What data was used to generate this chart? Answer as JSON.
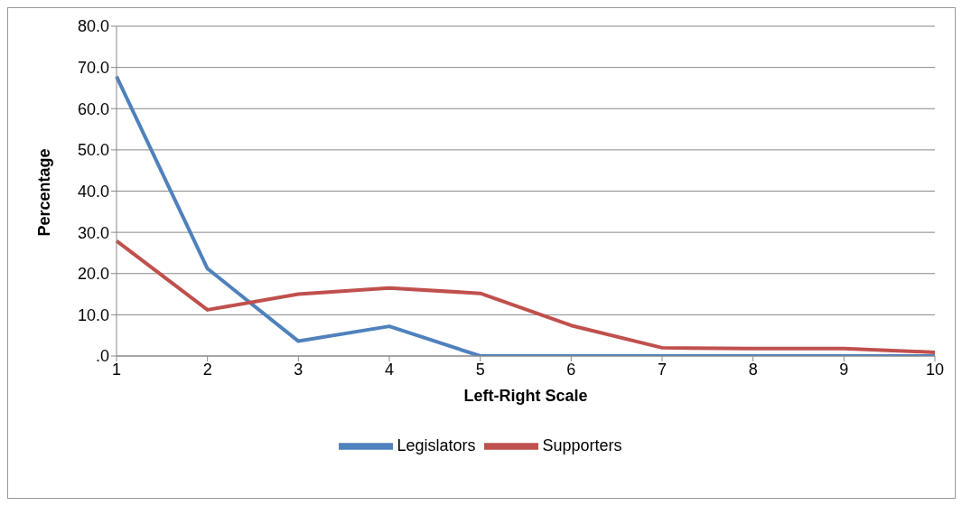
{
  "chart_data": {
    "type": "line",
    "xlabel": "Left-Right Scale",
    "ylabel": "Percentage",
    "categories": [
      "1",
      "2",
      "3",
      "4",
      "5",
      "6",
      "7",
      "8",
      "9",
      "10"
    ],
    "series": [
      {
        "name": "Legislators",
        "color": "#4f81bd",
        "values": [
          67.8,
          21.2,
          3.6,
          7.2,
          0,
          0,
          0,
          0,
          0,
          0
        ]
      },
      {
        "name": "Supporters",
        "color": "#c0504d",
        "values": [
          27.9,
          11.2,
          15.0,
          16.5,
          15.2,
          7.4,
          2.0,
          1.8,
          1.8,
          0.9
        ]
      }
    ],
    "ylim": [
      0,
      80
    ],
    "yticks": [
      {
        "value": 0,
        "label": ".0"
      },
      {
        "value": 10,
        "label": "10.0"
      },
      {
        "value": 20,
        "label": "20.0"
      },
      {
        "value": 30,
        "label": "30.0"
      },
      {
        "value": 40,
        "label": "40.0"
      },
      {
        "value": 50,
        "label": "50.0"
      },
      {
        "value": 60,
        "label": "60.0"
      },
      {
        "value": 70,
        "label": "70.0"
      },
      {
        "value": 80,
        "label": "80.0"
      }
    ],
    "grid": "y",
    "legend": "bottom",
    "marker": "none",
    "line_style": "solid"
  }
}
